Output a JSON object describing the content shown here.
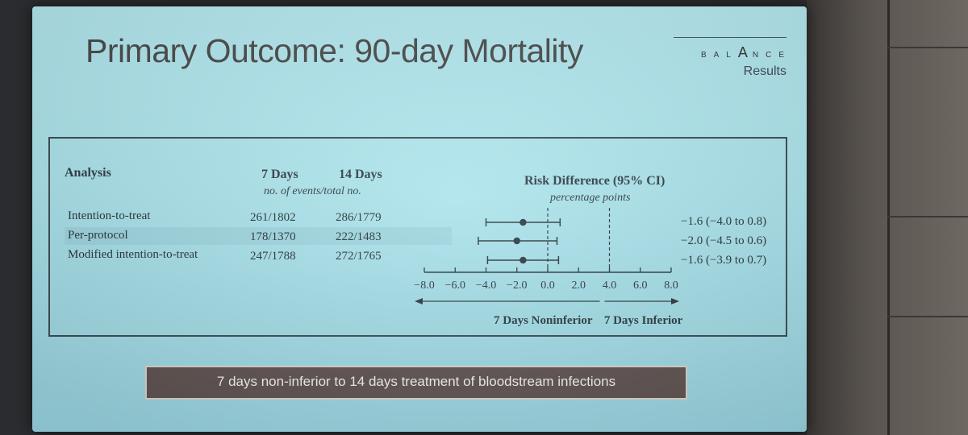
{
  "slide": {
    "title": "Primary Outcome: 90-day Mortality",
    "brand_letters": [
      "B",
      "A",
      "L",
      "A",
      "N",
      "C",
      "E"
    ],
    "brand_sub": "Results",
    "banner": "7 days non-inferior to 14 days treatment of bloodstream infections"
  },
  "table": {
    "headers": {
      "analysis": "Analysis",
      "days7": "7 Days",
      "days14": "14 Days",
      "events": "no. of events/total no.",
      "risk": "Risk Difference (95% CI)",
      "units": "percentage points"
    },
    "rows": [
      {
        "analysis": "Intention-to-treat",
        "days7": "261/1802",
        "days14": "286/1779",
        "ci_text": "−1.6 (−4.0 to 0.8)"
      },
      {
        "analysis": "Per-protocol",
        "days7": "178/1370",
        "days14": "222/1483",
        "ci_text": "−2.0 (−4.5 to 0.6)"
      },
      {
        "analysis": "Modified intention-to-treat",
        "days7": "247/1788",
        "days14": "272/1765",
        "ci_text": "−1.6 (−3.9 to 0.7)"
      }
    ]
  },
  "chart_data": {
    "type": "scatter",
    "title": "Risk Difference (95% CI)",
    "xlabel": "percentage points",
    "xlim": [
      -8,
      8
    ],
    "x_ticks": [
      -8.0,
      -6.0,
      -4.0,
      -2.0,
      0.0,
      2.0,
      4.0,
      6.0,
      8.0
    ],
    "x_tick_labels": [
      "−8.0",
      "−6.0",
      "−4.0",
      "−2.0",
      "0.0",
      "2.0",
      "4.0",
      "6.0",
      "8.0"
    ],
    "reference_lines": [
      0,
      4
    ],
    "points": [
      {
        "x": -1.6,
        "lo": -4.0,
        "hi": 0.8
      },
      {
        "x": -2.0,
        "lo": -4.5,
        "hi": 0.6
      },
      {
        "x": -1.6,
        "lo": -3.9,
        "hi": 0.7
      }
    ],
    "direction_labels": {
      "left": "7 Days Noninferior",
      "right": "7 Days Inferior"
    }
  }
}
